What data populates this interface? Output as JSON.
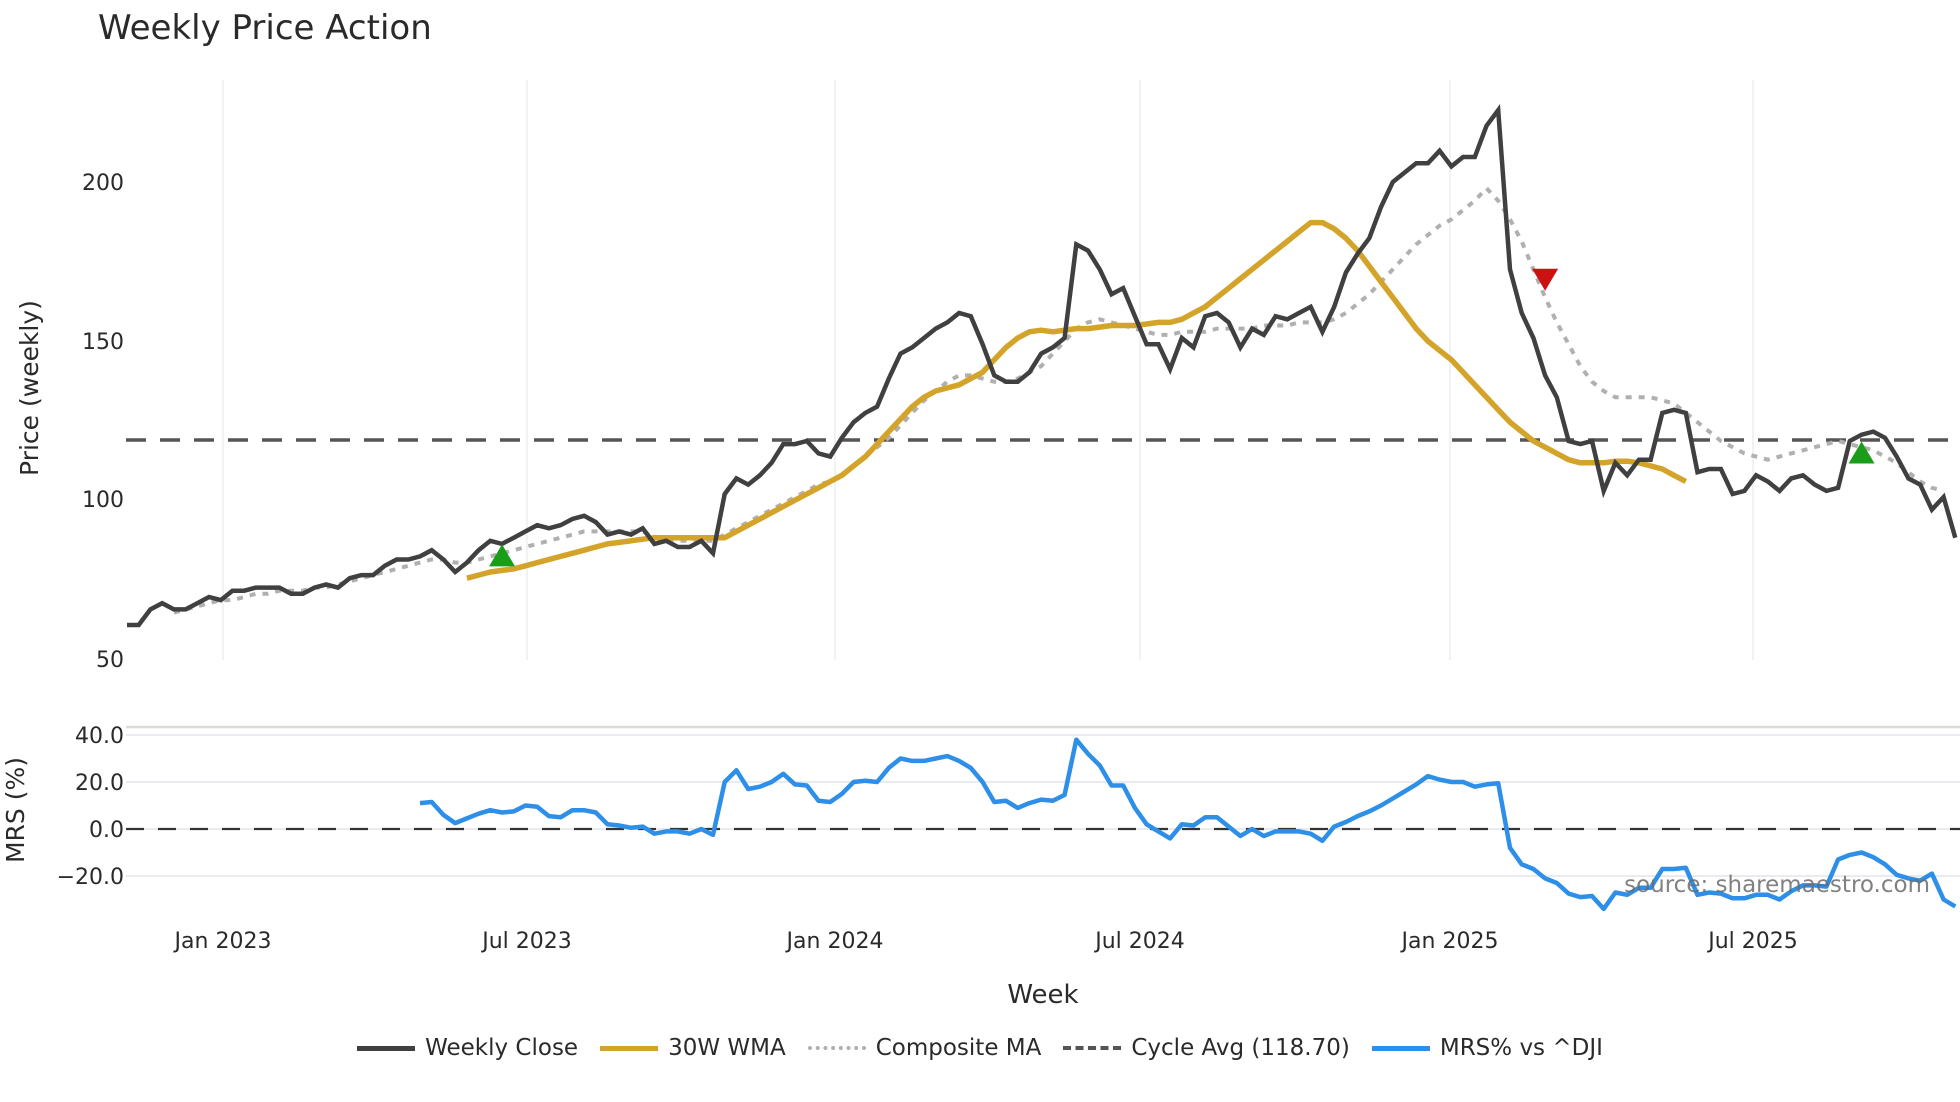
{
  "title": "Weekly Price Action",
  "source": "source: sharemaestro.com",
  "xaxis": {
    "label": "Week",
    "ticks": [
      "Jan 2023",
      "Jul 2023",
      "Jan 2024",
      "Jul 2024",
      "Jan 2025",
      "Jul 2025"
    ]
  },
  "price_axis": {
    "label": "Price (weekly)",
    "ticks": [
      "50",
      "100",
      "150",
      "200"
    ]
  },
  "mrs_axis": {
    "label": "MRS (%)",
    "ticks": [
      "40.0",
      "20.0",
      "0.0",
      "−20.0"
    ]
  },
  "legend": [
    {
      "label": "Weekly Close",
      "color": "#404040",
      "style": "solid"
    },
    {
      "label": "30W WMA",
      "color": "#d4a42a",
      "style": "solid"
    },
    {
      "label": "Composite MA",
      "color": "#b0b0b0",
      "style": "dotted"
    },
    {
      "label": "Cycle Avg (118.70)",
      "color": "#555555",
      "style": "dashed"
    },
    {
      "label": "MRS% vs ^DJI",
      "color": "#2e8fe8",
      "style": "solid"
    }
  ],
  "colors": {
    "close": "#404040",
    "wma": "#d4a42a",
    "composite": "#b0b0b0",
    "cycle": "#555555",
    "mrs": "#2e8fe8",
    "buy": "#1a9e1a",
    "sell": "#cc1111"
  },
  "chart_data": [
    {
      "type": "line",
      "title": "Weekly Price Action",
      "xlabel": "Week",
      "ylabel": "Price (weekly)",
      "ylim": [
        50,
        230
      ],
      "x_ticks": [
        "Jan 2023",
        "Jul 2023",
        "Jan 2024",
        "Jul 2024",
        "Jan 2025",
        "Jul 2025"
      ],
      "y_ticks": [
        50,
        100,
        150,
        200
      ],
      "x_start_week_offset": -8,
      "cycle_avg": 118.7,
      "series": [
        {
          "name": "Weekly Close",
          "values": [
            58,
            58,
            63,
            65,
            63,
            63,
            65,
            67,
            66,
            69,
            69,
            70,
            70,
            70,
            68,
            68,
            70,
            71,
            70,
            73,
            74,
            74,
            77,
            79,
            79,
            80,
            82,
            79,
            75,
            78,
            82,
            85,
            84,
            86,
            88,
            90,
            89,
            90,
            92,
            93,
            91,
            87,
            88,
            87,
            89,
            84,
            85,
            83,
            83,
            85,
            81,
            100,
            105,
            103,
            106,
            110,
            116,
            116,
            117,
            113,
            112,
            118,
            123,
            126,
            128,
            137,
            145,
            147,
            150,
            153,
            155,
            158,
            157,
            148,
            138,
            136,
            136,
            139,
            145,
            147,
            150,
            180,
            178,
            172,
            164,
            166,
            157,
            148,
            148,
            140,
            150,
            147,
            157,
            158,
            155,
            147,
            153,
            151,
            157,
            156,
            158,
            160,
            152,
            160,
            171,
            177,
            182,
            192,
            200,
            203,
            206,
            206,
            210,
            205,
            208,
            208,
            218,
            223,
            172,
            158,
            150,
            138,
            131,
            117,
            116,
            117,
            101,
            110,
            106,
            111,
            111,
            126,
            127,
            126,
            107,
            108,
            108,
            100,
            101,
            106,
            104,
            101,
            105,
            106,
            103,
            101,
            102,
            117,
            119,
            120,
            118,
            112,
            105,
            103,
            95,
            99,
            86
          ]
        },
        {
          "name": "30W WMA",
          "start_index": 29,
          "values": [
            73,
            74,
            75,
            75.5,
            76,
            77,
            78,
            79,
            80,
            81,
            82,
            83,
            84,
            84.5,
            85,
            85.5,
            86,
            86,
            86,
            86,
            86,
            86,
            86,
            88,
            90,
            92,
            94,
            96,
            98,
            100,
            102,
            104,
            106,
            109,
            112,
            116,
            120,
            124,
            128,
            131,
            133,
            134,
            135,
            137,
            139,
            143,
            147,
            150,
            152,
            152.5,
            152,
            152.5,
            153,
            153,
            153.5,
            154,
            154,
            154,
            154.5,
            155,
            155,
            156,
            158,
            160,
            163,
            166,
            169,
            172,
            175,
            178,
            181,
            184,
            187,
            187,
            185,
            182,
            178,
            173,
            168,
            163,
            158,
            153,
            149,
            146,
            143,
            139,
            135,
            131,
            127,
            123,
            120,
            117,
            115,
            113,
            111,
            110,
            110,
            110,
            110.5,
            110.5,
            110,
            109,
            108,
            106,
            104
          ]
        },
        {
          "name": "Composite MA",
          "values": [
            null,
            null,
            null,
            null,
            62,
            63,
            64,
            65,
            66,
            66,
            67,
            68,
            68,
            69,
            69,
            69,
            70,
            70,
            71,
            72,
            73,
            74,
            75,
            76,
            77,
            78,
            79,
            79,
            78,
            78,
            79,
            80,
            81,
            82,
            83,
            84,
            85,
            86,
            87,
            88,
            88,
            88,
            88,
            88,
            88,
            86,
            85,
            85,
            85,
            85,
            85,
            87,
            89,
            91,
            93,
            95,
            97,
            99,
            101,
            103,
            104,
            106,
            109,
            112,
            115,
            118,
            122,
            126,
            130,
            133,
            136,
            138,
            138,
            137,
            136,
            136,
            137,
            139,
            141,
            145,
            149,
            153,
            155,
            156,
            155,
            154,
            153,
            152,
            151,
            151,
            152,
            152,
            152,
            153,
            153,
            153,
            153,
            154,
            154,
            154,
            155,
            155,
            155,
            156,
            158,
            161,
            164,
            168,
            172,
            176,
            180,
            183,
            186,
            188,
            191,
            194,
            198,
            194,
            188,
            181,
            172,
            163,
            155,
            148,
            141,
            136,
            133,
            131,
            131,
            131,
            131,
            130,
            129,
            126,
            123,
            120,
            117,
            115,
            113,
            112,
            111,
            112,
            113,
            114,
            115,
            116,
            117,
            116,
            115,
            114,
            112,
            110,
            107,
            104,
            102,
            101
          ]
        },
        {
          "name": "Cycle Avg (118.70)",
          "values": "constant 118.70"
        }
      ],
      "markers": [
        {
          "type": "buy",
          "shape": "triangle-up",
          "color": "#1a9e1a",
          "week_index": 32,
          "value": 80
        },
        {
          "type": "sell",
          "shape": "triangle-down",
          "color": "#cc1111",
          "week_index": 121,
          "value": 169
        },
        {
          "type": "buy",
          "shape": "triangle-up",
          "color": "#1a9e1a",
          "week_index": 148,
          "value": 113
        }
      ]
    },
    {
      "type": "line",
      "title": "",
      "xlabel": "Week",
      "ylabel": "MRS (%)",
      "ylim": [
        -35,
        42
      ],
      "y_ticks": [
        -20,
        0,
        20,
        40
      ],
      "zero_line": "dashed",
      "series": [
        {
          "name": "MRS% vs ^DJI",
          "start_index": 25,
          "values": [
            11,
            11.5,
            6,
            2.5,
            4.5,
            6.5,
            8,
            7,
            7.5,
            10,
            9.5,
            5.5,
            5,
            8,
            8,
            7,
            2,
            1.5,
            0.5,
            1,
            -2,
            -1,
            -1,
            -2,
            0,
            -2.5,
            20,
            25,
            17,
            18,
            20,
            23.5,
            19,
            18.5,
            12,
            11.5,
            15,
            20,
            20.5,
            20,
            26,
            30,
            29,
            29,
            30,
            31,
            29,
            26,
            20,
            11.5,
            12,
            9,
            11,
            12.5,
            12,
            14.5,
            38,
            32,
            27,
            18.5,
            18.5,
            9,
            2,
            -1,
            -4,
            2,
            1.5,
            5,
            5,
            1,
            -3,
            0,
            -3,
            -1,
            -1,
            -1,
            -2,
            -5,
            1,
            3,
            5.5,
            7.5,
            10,
            13,
            16,
            19,
            22.5,
            21,
            20,
            20,
            18,
            19,
            19.5,
            -8,
            -15,
            -17,
            -21,
            -23,
            -27.5,
            -29,
            -28.5,
            -34,
            -27,
            -28,
            -25,
            -25,
            -17,
            -17,
            -16.5,
            -28,
            -27,
            -27.5,
            -29.5,
            -29.5,
            -28,
            -28,
            -30,
            -26.5,
            -24,
            -24,
            -24.5,
            -13,
            -11,
            -10,
            -12,
            -15,
            -19.5,
            -21,
            -22,
            -19,
            -30,
            -33
          ]
        }
      ]
    }
  ]
}
